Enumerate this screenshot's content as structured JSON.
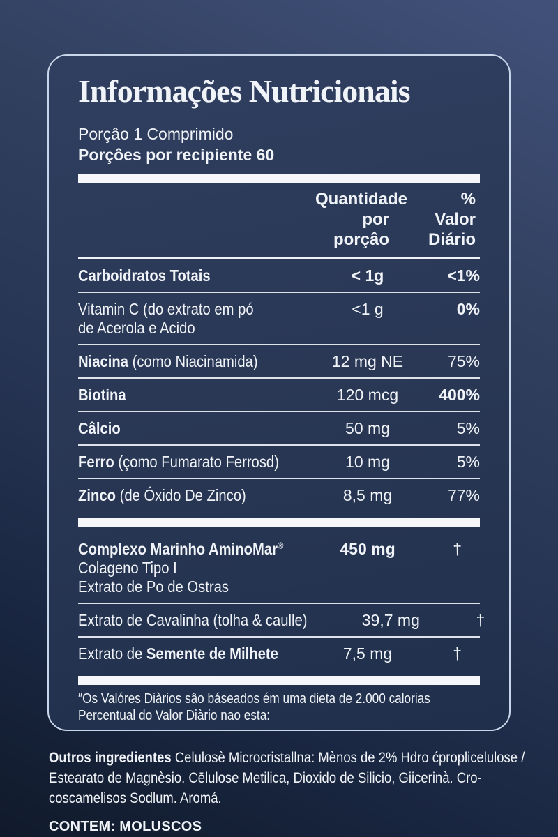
{
  "page": {
    "title": "Informações Nutricionais",
    "serving_line1": "Porçâo 1 Comprimido",
    "serving_line2": "Porçôes por recipiente 60"
  },
  "colors": {
    "background_top": "#41517a",
    "background_bottom": "#101a2b",
    "panel_background": "#2a3856",
    "panel_border": "#c9d5e8",
    "text": "#f0f3f7",
    "rule": "#eef2f6"
  },
  "table": {
    "header": {
      "amount_line1": "Quantidade",
      "amount_line2": "por porçâo",
      "percent_line1": "% Valor",
      "percent_line2": "Diário"
    },
    "sections": [
      {
        "rows": [
          {
            "name_bold": "Carboidratos Totais",
            "name_rest": "",
            "amount": "< 1g",
            "amount_bold": true,
            "percent": "<1%",
            "percent_bold": true
          },
          {
            "name_bold": "",
            "name_rest": "Vitamin C (do extrato em pó",
            "sublines": [
              "de Acerola e Acido"
            ],
            "amount": "<1 g",
            "percent": "0%",
            "percent_bold": true
          },
          {
            "name_bold": "Niacina",
            "name_rest": " (como Niacinamida)",
            "amount": "12 mg NE",
            "percent": "75%"
          },
          {
            "name_bold": "Biotina",
            "name_rest": "",
            "amount": "120 mcg",
            "percent": "400%",
            "percent_bold": true
          },
          {
            "name_bold": "Câlcio",
            "name_rest": "",
            "amount": "50 mg",
            "percent": "5%"
          },
          {
            "name_bold": "Ferro",
            "name_rest": " (çomo Fumarato Ferrosd)",
            "amount": "10 mg",
            "percent": "5%"
          },
          {
            "name_bold": "Zinco",
            "name_rest": " (de Óxido De Zinco)",
            "amount": "8,5 mg",
            "percent": "77%"
          }
        ]
      },
      {
        "rows": [
          {
            "name_bold": "Complexo Marinho AminoMar",
            "name_sup": "®",
            "name_rest": "",
            "sublines": [
              "Colageno Tipo I",
              "Extrato de Po de Ostras"
            ],
            "amount": "450 mg",
            "amount_bold": true,
            "percent": "†",
            "dagger": true
          },
          {
            "name_bold": "",
            "name_rest": "Extrato de Cavalinha (tolha & caulle)",
            "amount": "39,7 mg",
            "percent": "†",
            "dagger": true
          },
          {
            "name_bold": "",
            "name_rest": "Extrato de ",
            "name_bold_tail": "Semente de Milhete",
            "amount": "7,5 mg",
            "percent": "†",
            "dagger": true
          }
        ]
      }
    ],
    "footnote_line1": "″Os Valóres Diàrios sâo báseados ém uma dieta de 2.000 calorias",
    "footnote_line2": "Percentual do Valor Diàrio nao esta:"
  },
  "footer": {
    "other_ingredients_bold": "Outros ingredientes",
    "other_ingredients_lines": [
      "Celulosè Microcristallna:  Mènos de 2% Hdro ćproplicelulose /",
      "Estearato de Magnèsio. Cēlulose Metilica, Dioxido de Silicio, Giicerinà. Cro-",
      "coscamelisos Sodlum. Aromá."
    ],
    "allergen": "CONTEM: MOLUSCOS"
  }
}
